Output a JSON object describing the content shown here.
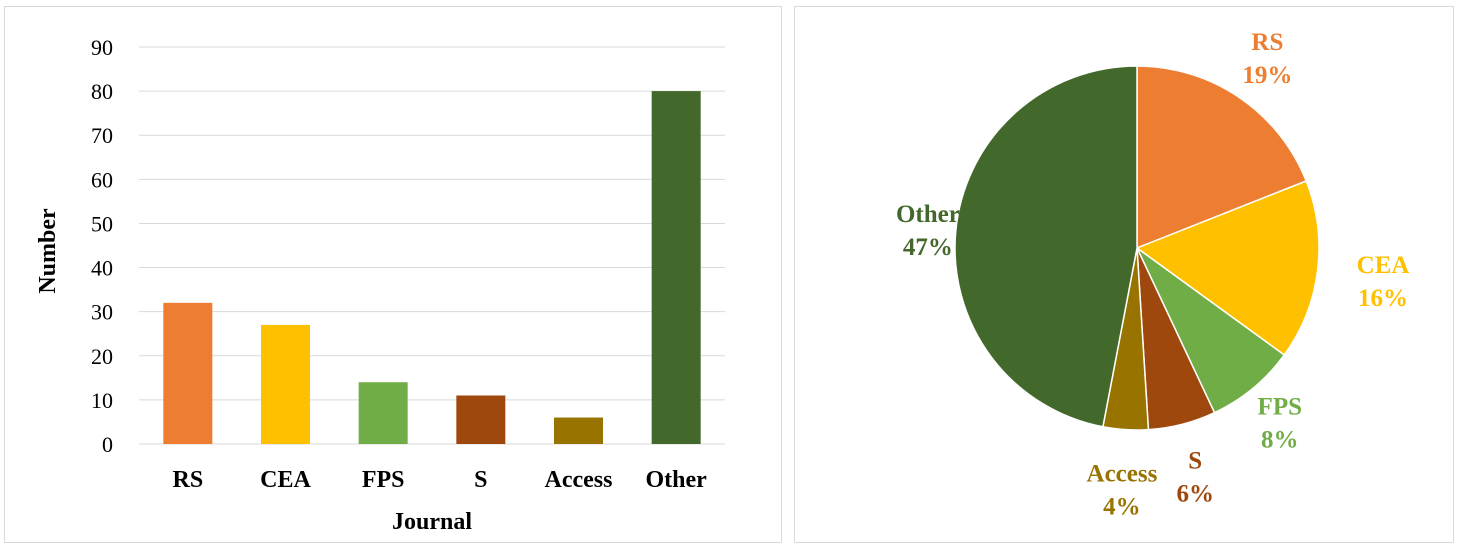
{
  "chart_data": [
    {
      "type": "bar",
      "categories": [
        "RS",
        "CEA",
        "FPS",
        "S",
        "Access",
        "Other"
      ],
      "values": [
        32,
        27,
        14,
        11,
        6,
        80
      ],
      "colors": [
        "#ED7D31",
        "#FFC000",
        "#70AD47",
        "#9E480E",
        "#997300",
        "#43682B"
      ],
      "xlabel": "Journal",
      "ylabel": "Number",
      "ylim": [
        0,
        90
      ],
      "yticks": [
        0,
        10,
        20,
        30,
        40,
        50,
        60,
        70,
        80,
        90
      ],
      "grid": true
    },
    {
      "type": "pie",
      "categories": [
        "RS",
        "CEA",
        "FPS",
        "S",
        "Access",
        "Other"
      ],
      "values": [
        19,
        16,
        8,
        6,
        4,
        47
      ],
      "labels": [
        "19%",
        "16%",
        "8%",
        "6%",
        "4%",
        "47%"
      ],
      "colors": [
        "#ED7D31",
        "#FFC000",
        "#70AD47",
        "#9E480E",
        "#997300",
        "#43682B"
      ]
    }
  ]
}
